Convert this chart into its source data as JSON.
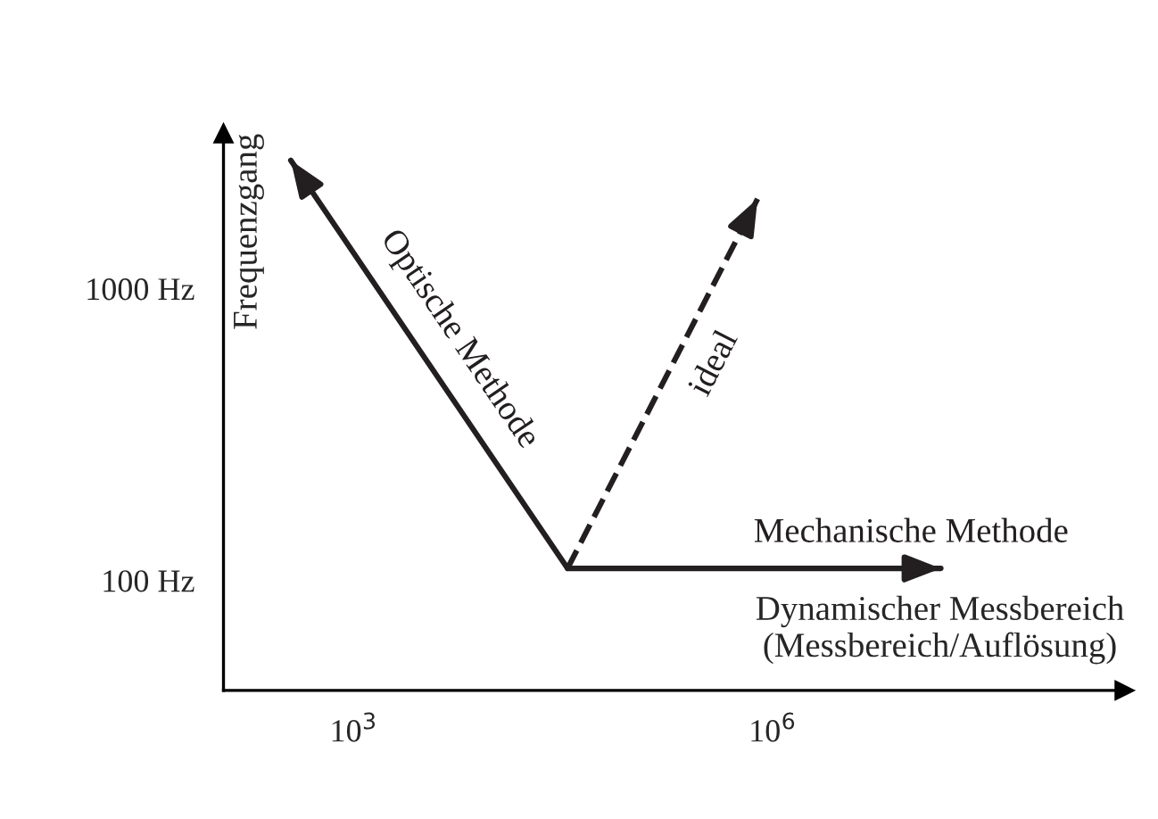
{
  "chart_data": {
    "type": "line",
    "xlabel": "Dynamischer Messbereich\n(Messbereich/Auflösung)",
    "ylabel": "Frequenzgang",
    "log": "xy",
    "xlim": [
      117,
      330000000
    ],
    "ylim": [
      42,
      3400
    ],
    "xticks": [
      {
        "value": 1000,
        "label": "10$^{3}$"
      },
      {
        "value": 1000000,
        "label": "10$^{6}$"
      }
    ],
    "yticks": [
      {
        "value": 100,
        "label": "100 Hz"
      },
      {
        "value": 1000,
        "label": "1000 Hz"
      }
    ],
    "grid": false,
    "legend": false,
    "marker": "none",
    "series": [
      {
        "name": "Optische Methode",
        "color": "#231f20",
        "x": [
          34000,
          355
        ],
        "values": [
          110,
          2750
        ],
        "line_style": "solid"
      },
      {
        "name": "ideal",
        "color": "#231f20",
        "x": [
          34000,
          780000
        ],
        "values": [
          110,
          2030
        ],
        "line_style": "dashed"
      },
      {
        "name": "Mechanische Methode",
        "color": "#231f20",
        "x": [
          34000,
          16000000
        ],
        "values": [
          110,
          110
        ],
        "line_style": "solid"
      }
    ]
  }
}
